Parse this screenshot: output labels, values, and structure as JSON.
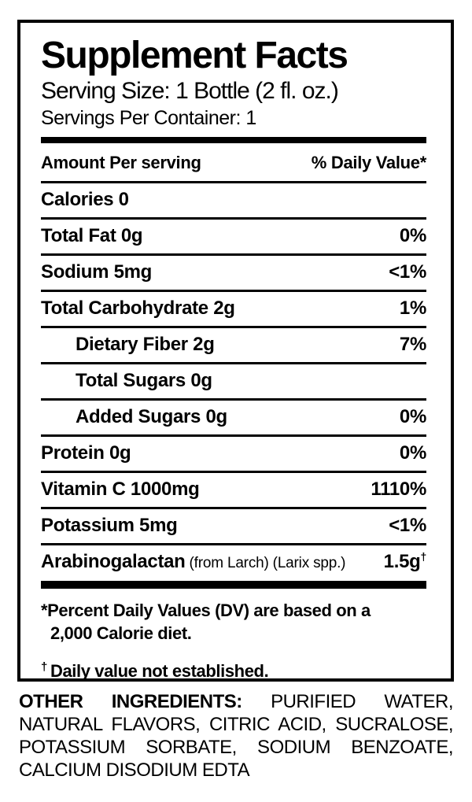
{
  "label": {
    "title": "Supplement Facts",
    "serving_size": "Serving Size: 1 Bottle (2 fl. oz.)",
    "servings_per_container": "Servings Per Container: 1",
    "header": {
      "left": "Amount Per serving",
      "right": "% Daily Value*"
    },
    "rows": [
      {
        "label": "Calories 0",
        "value": "",
        "indent": false
      },
      {
        "label": "Total Fat 0g",
        "value": "0%",
        "indent": false
      },
      {
        "label": "Sodium 5mg",
        "value": "<1%",
        "indent": false
      },
      {
        "label": "Total Carbohydrate 2g",
        "value": "1%",
        "indent": false
      },
      {
        "label": "Dietary Fiber 2g",
        "value": "7%",
        "indent": true
      },
      {
        "label": "Total Sugars 0g",
        "value": "",
        "indent": true
      },
      {
        "label": "Added Sugars 0g",
        "value": "0%",
        "indent": true
      },
      {
        "label": "Protein 0g",
        "value": "0%",
        "indent": false
      },
      {
        "label": "Vitamin C 1000mg",
        "value": "1110%",
        "indent": false
      },
      {
        "label": "Potassium 5mg",
        "value": "<1%",
        "indent": false
      },
      {
        "label": "Arabinogalactan",
        "note": "(from Larch) (Larix spp.)",
        "value": "1.5g",
        "value_sup": "†",
        "indent": false
      }
    ],
    "footnotes": {
      "percent_line1": "*Percent Daily Values (DV) are based on a",
      "percent_line2": "2,000 Calorie diet.",
      "dagger_symbol": "†",
      "dagger_text": "Daily value not established."
    }
  },
  "other_ingredients": {
    "label": "OTHER INGREDIENTS:",
    "text": "PURIFIED WATER, NATURAL FLAVORS, CITRIC ACID, SUCRALOSE, POTASSIUM SORBATE, SODIUM BENZOATE, CALCIUM DISODIUM EDTA"
  },
  "colors": {
    "foreground": "#000000",
    "background": "#ffffff"
  }
}
